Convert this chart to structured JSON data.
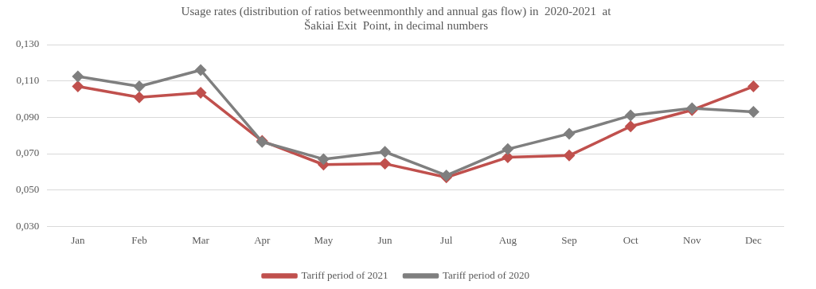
{
  "chart_data": {
    "type": "line",
    "title": "Usage rates (distribution of ratios betweenmonthly and annual gas flow) in  2020-2021  at Šakiai Exit  Point, in decimal numbers",
    "categories": [
      "Jan",
      "Feb",
      "Mar",
      "Apr",
      "May",
      "Jun",
      "Jul",
      "Aug",
      "Sep",
      "Oct",
      "Nov",
      "Dec"
    ],
    "series": [
      {
        "name": "Tariff period of 2021",
        "color": "#c0504d",
        "values": [
          0.107,
          0.101,
          0.1035,
          0.077,
          0.064,
          0.0645,
          0.057,
          0.068,
          0.069,
          0.085,
          0.094,
          0.107
        ]
      },
      {
        "name": "Tariff period of 2020",
        "color": "#7f7f7f",
        "values": [
          0.1125,
          0.107,
          0.116,
          0.0765,
          0.067,
          0.071,
          0.058,
          0.0725,
          0.081,
          0.091,
          0.095,
          0.093
        ]
      }
    ],
    "ylim": [
      0.03,
      0.13
    ],
    "yticks": [
      {
        "value": 0.03,
        "label": "0,030"
      },
      {
        "value": 0.05,
        "label": "0,050"
      },
      {
        "value": 0.07,
        "label": "0,070"
      },
      {
        "value": 0.09,
        "label": "0,090"
      },
      {
        "value": 0.11,
        "label": "0,110"
      },
      {
        "value": 0.13,
        "label": "0,130"
      }
    ],
    "grid": "y",
    "legend": "bottom",
    "marker": "diamond",
    "line_style": "solid"
  }
}
